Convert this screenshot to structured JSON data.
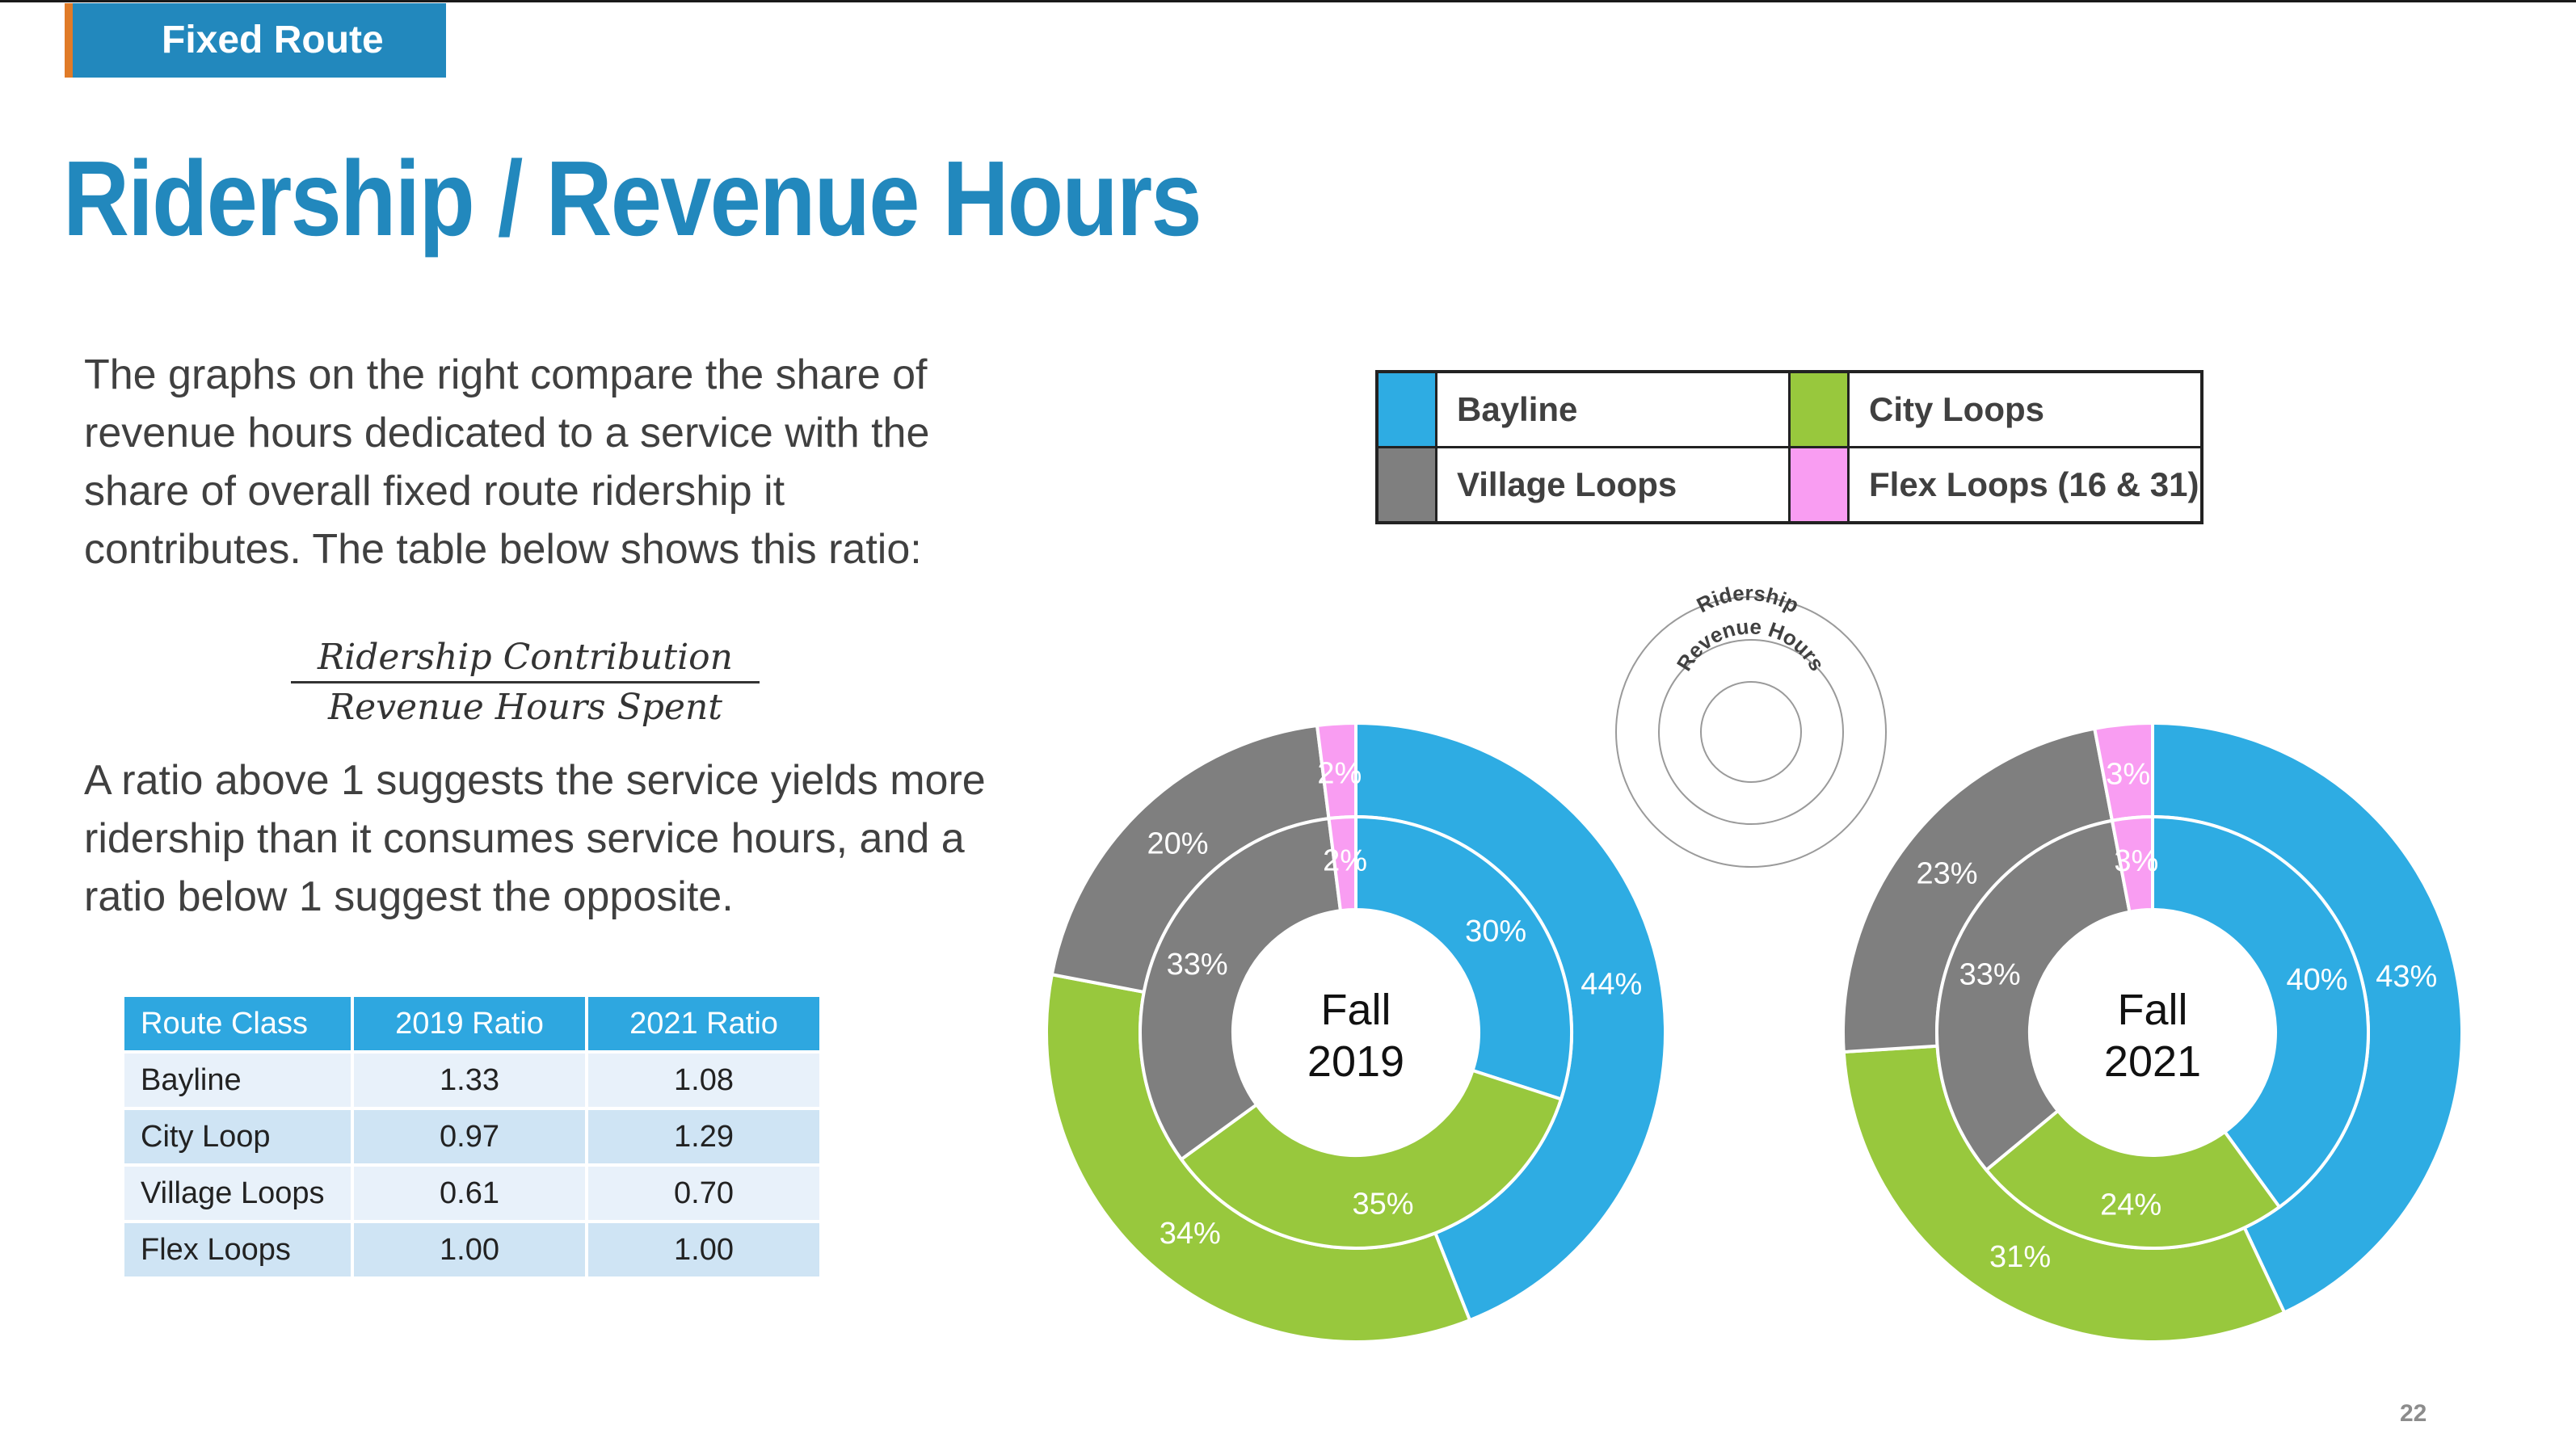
{
  "header": {
    "section": "Fixed Route",
    "title": "Ridership / Revenue Hours"
  },
  "intro_text": "The graphs on the right compare the share of revenue hours dedicated to a service with the share of overall fixed route ridership it contributes. The table below shows this ratio:",
  "formula": {
    "numerator": "Ridership Contribution",
    "denominator": "Revenue Hours Spent"
  },
  "explain_text": "A ratio above 1 suggests the service yields more ridership than it consumes service hours, and a ratio below 1 suggest the opposite.",
  "table": {
    "headers": [
      "Route Class",
      "2019 Ratio",
      "2021 Ratio"
    ],
    "rows": [
      [
        "Bayline",
        "1.33",
        "1.08"
      ],
      [
        "City Loop",
        "0.97",
        "1.29"
      ],
      [
        "Village Loops",
        "0.61",
        "0.70"
      ],
      [
        "Flex Loops",
        "1.00",
        "1.00"
      ]
    ]
  },
  "legend": [
    {
      "label": "Bayline",
      "color": "#2eace3"
    },
    {
      "label": "City Loops",
      "color": "#98c83d"
    },
    {
      "label": "Village Loops",
      "color": "#7f7f7f"
    },
    {
      "label": "Flex Loops (16 & 31)",
      "color": "#f99df2"
    }
  ],
  "ring_key": {
    "outer": "Ridership",
    "inner": "Revenue Hours"
  },
  "chart_data": [
    {
      "type": "pie",
      "center_label": [
        "Fall",
        "2019"
      ],
      "categories": [
        "Bayline",
        "City Loops",
        "Village Loops",
        "Flex Loops (16 & 31)"
      ],
      "series": [
        {
          "name": "Ridership",
          "values": [
            44,
            34,
            20,
            2
          ],
          "labels": [
            "44%",
            "34%",
            "20%",
            "2%"
          ]
        },
        {
          "name": "Revenue Hours",
          "values": [
            30,
            35,
            33,
            2
          ],
          "labels": [
            "30%",
            "35%",
            "33%",
            "2%"
          ]
        }
      ]
    },
    {
      "type": "pie",
      "center_label": [
        "Fall",
        "2021"
      ],
      "categories": [
        "Bayline",
        "City Loops",
        "Village Loops",
        "Flex Loops (16 & 31)"
      ],
      "series": [
        {
          "name": "Ridership",
          "values": [
            43,
            31,
            23,
            3
          ],
          "labels": [
            "43%",
            "31%",
            "23%",
            "3%"
          ]
        },
        {
          "name": "Revenue Hours",
          "values": [
            40,
            24,
            33,
            3
          ],
          "labels": [
            "40%",
            "24%",
            "33%",
            "3%"
          ]
        }
      ]
    }
  ],
  "page_number": "22"
}
